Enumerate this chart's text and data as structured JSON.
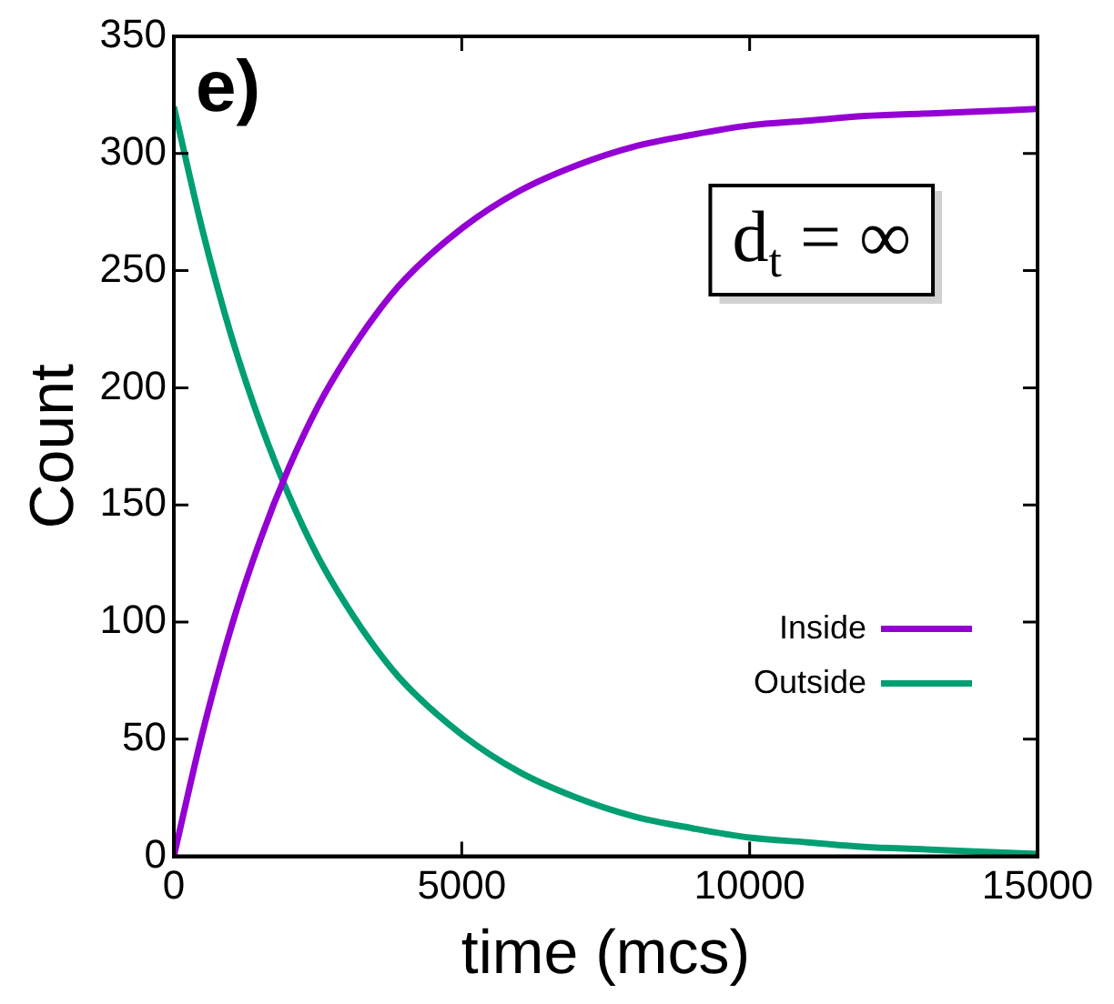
{
  "chart_data": {
    "type": "line",
    "xlabel": "time (mcs)",
    "ylabel": "Count",
    "x": [
      0,
      500,
      1000,
      1500,
      2000,
      2500,
      3000,
      3500,
      4000,
      5000,
      6000,
      7000,
      8000,
      9000,
      10000,
      11000,
      12000,
      13000,
      14000,
      15000
    ],
    "series": [
      {
        "name": "Inside",
        "color": "#9400d3",
        "values": [
          0,
          53,
          98,
          135,
          166,
          192,
          213,
          231,
          246,
          268,
          284,
          295,
          303,
          308,
          312,
          314,
          316,
          317,
          318,
          319
        ]
      },
      {
        "name": "Outside",
        "color": "#009e73",
        "values": [
          320,
          267,
          222,
          185,
          154,
          128,
          107,
          89,
          74,
          52,
          36,
          25,
          17,
          12,
          8,
          6,
          4,
          3,
          2,
          1
        ]
      }
    ],
    "xlim": [
      0,
      15000
    ],
    "xticks": [
      0,
      5000,
      10000,
      15000
    ],
    "ylim": [
      0,
      350
    ],
    "yticks": [
      0,
      50,
      100,
      150,
      200,
      250,
      300,
      350
    ],
    "grid": false,
    "legend": "bottom right",
    "marker": "none",
    "line_style": "solid",
    "annotations": [
      "e)",
      "d$_{t}$ = ∞"
    ]
  }
}
